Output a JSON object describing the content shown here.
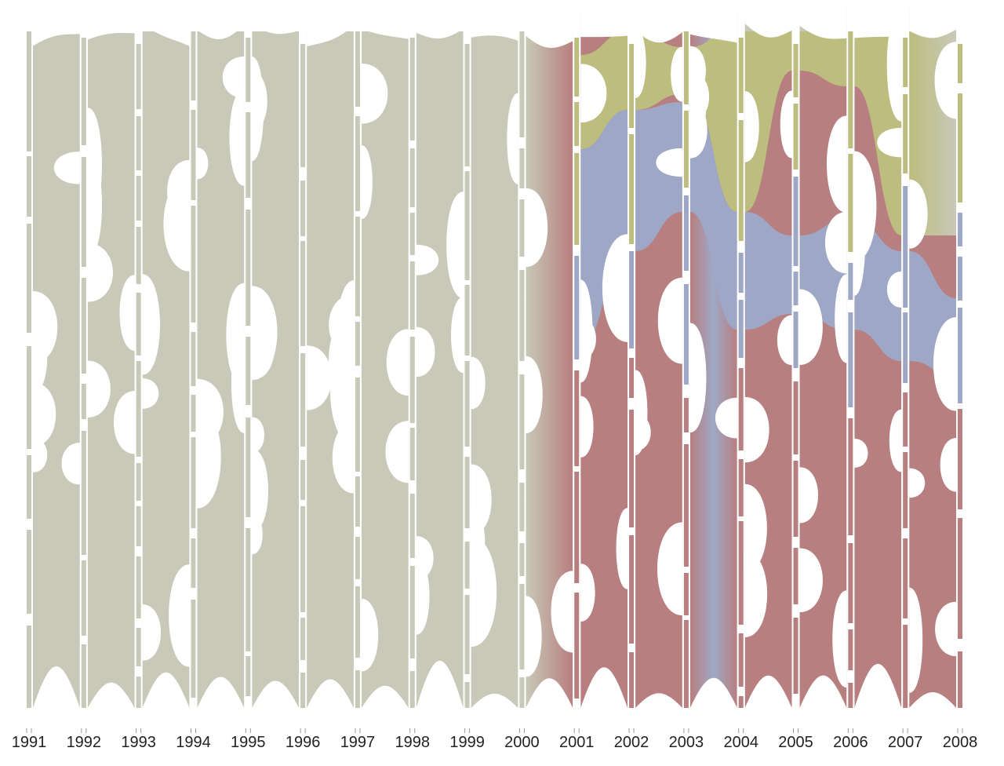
{
  "chart_data": {
    "type": "alluvial",
    "title": "",
    "xlabel": "",
    "ylabel": "",
    "categories": [
      "1991",
      "1992",
      "1993",
      "1994",
      "1995",
      "1996",
      "1997",
      "1998",
      "1999",
      "2000",
      "2001",
      "2002",
      "2003",
      "2004",
      "2005",
      "2006",
      "2007",
      "2008"
    ],
    "colors": {
      "gray": "#c8c9b8",
      "green": "#bcbd7e",
      "blue": "#9ea8c6",
      "red": "#b87f80"
    },
    "grid": false,
    "legend": "none"
  }
}
